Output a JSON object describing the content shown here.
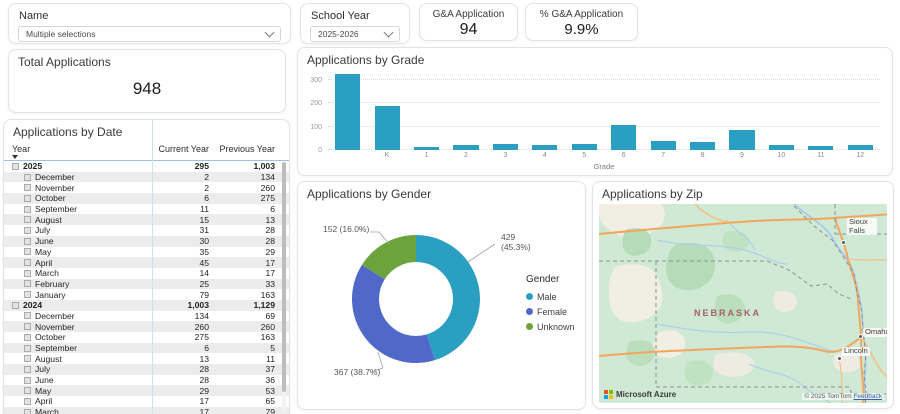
{
  "slicers": {
    "name": {
      "label": "Name",
      "value": "Multiple selections"
    },
    "school_year": {
      "label": "School Year",
      "value": "2025-2026"
    }
  },
  "kpis": {
    "ga": {
      "label": "G&A Application",
      "value": "94"
    },
    "pct_ga": {
      "label": "% G&A Application",
      "value": "9.9%"
    },
    "total": {
      "label": "Total Applications",
      "value": "948"
    }
  },
  "date_table": {
    "title": "Applications by Date",
    "columns": [
      "Year",
      "Current Year",
      "Previous Year"
    ],
    "rows": [
      {
        "label": "2025",
        "current": "295",
        "previous": "1,003",
        "level": 0
      },
      {
        "label": "December",
        "current": "2",
        "previous": "134",
        "level": 1
      },
      {
        "label": "November",
        "current": "2",
        "previous": "260",
        "level": 1
      },
      {
        "label": "October",
        "current": "6",
        "previous": "275",
        "level": 1
      },
      {
        "label": "September",
        "current": "11",
        "previous": "6",
        "level": 1
      },
      {
        "label": "August",
        "current": "15",
        "previous": "13",
        "level": 1
      },
      {
        "label": "July",
        "current": "31",
        "previous": "28",
        "level": 1
      },
      {
        "label": "June",
        "current": "30",
        "previous": "28",
        "level": 1
      },
      {
        "label": "May",
        "current": "35",
        "previous": "29",
        "level": 1
      },
      {
        "label": "April",
        "current": "45",
        "previous": "17",
        "level": 1
      },
      {
        "label": "March",
        "current": "14",
        "previous": "17",
        "level": 1
      },
      {
        "label": "February",
        "current": "25",
        "previous": "33",
        "level": 1
      },
      {
        "label": "January",
        "current": "79",
        "previous": "163",
        "level": 1
      },
      {
        "label": "2024",
        "current": "1,003",
        "previous": "1,129",
        "level": 0
      },
      {
        "label": "December",
        "current": "134",
        "previous": "69",
        "level": 1
      },
      {
        "label": "November",
        "current": "260",
        "previous": "260",
        "level": 1
      },
      {
        "label": "October",
        "current": "275",
        "previous": "163",
        "level": 1
      },
      {
        "label": "September",
        "current": "6",
        "previous": "5",
        "level": 1
      },
      {
        "label": "August",
        "current": "13",
        "previous": "11",
        "level": 1
      },
      {
        "label": "July",
        "current": "28",
        "previous": "37",
        "level": 1
      },
      {
        "label": "June",
        "current": "28",
        "previous": "36",
        "level": 1
      },
      {
        "label": "May",
        "current": "29",
        "previous": "53",
        "level": 1
      },
      {
        "label": "April",
        "current": "17",
        "previous": "65",
        "level": 1
      },
      {
        "label": "March",
        "current": "17",
        "previous": "79",
        "level": 1
      }
    ]
  },
  "chart_data": [
    {
      "type": "bar",
      "title": "Applications by Grade",
      "categories": [
        "",
        "K",
        "1",
        "2",
        "3",
        "4",
        "5",
        "6",
        "7",
        "8",
        "9",
        "10",
        "11",
        "12"
      ],
      "values": [
        325,
        190,
        15,
        20,
        25,
        22,
        27,
        105,
        40,
        33,
        85,
        20,
        17,
        20
      ],
      "xlabel": "Grade",
      "ylabel": "",
      "yticks": [
        0,
        100,
        200,
        300
      ],
      "ylim": [
        0,
        325
      ],
      "bar_color": "#2b9fc2",
      "grid": "horizontal-dotted",
      "legend_position": "none"
    },
    {
      "type": "donut",
      "title": "Applications by Gender",
      "legend_title": "Gender",
      "legend_position": "right",
      "slices": [
        {
          "name": "Male",
          "value": 429,
          "pct": "45.3%",
          "color": "#2b9fc2",
          "callout_lines": [
            "429",
            "(45.3%)"
          ]
        },
        {
          "name": "Female",
          "value": 367,
          "pct": "38.7%",
          "color": "#5068c8",
          "callout_lines": [
            "367 (38.7%)"
          ]
        },
        {
          "name": "Unknown",
          "value": 152,
          "pct": "16.0%",
          "color": "#6ca33c",
          "callout_lines": [
            "152 (16.0%)"
          ]
        }
      ]
    }
  ],
  "map": {
    "title": "Applications by Zip",
    "state_label": "NEBRASKA",
    "cities": [
      {
        "name": "Sioux Falls"
      },
      {
        "name": "Omaha"
      },
      {
        "name": "Lincoln"
      }
    ],
    "provider": "Microsoft Azure",
    "copyright": "© 2025 TomTom",
    "feedback": "Feedback"
  }
}
